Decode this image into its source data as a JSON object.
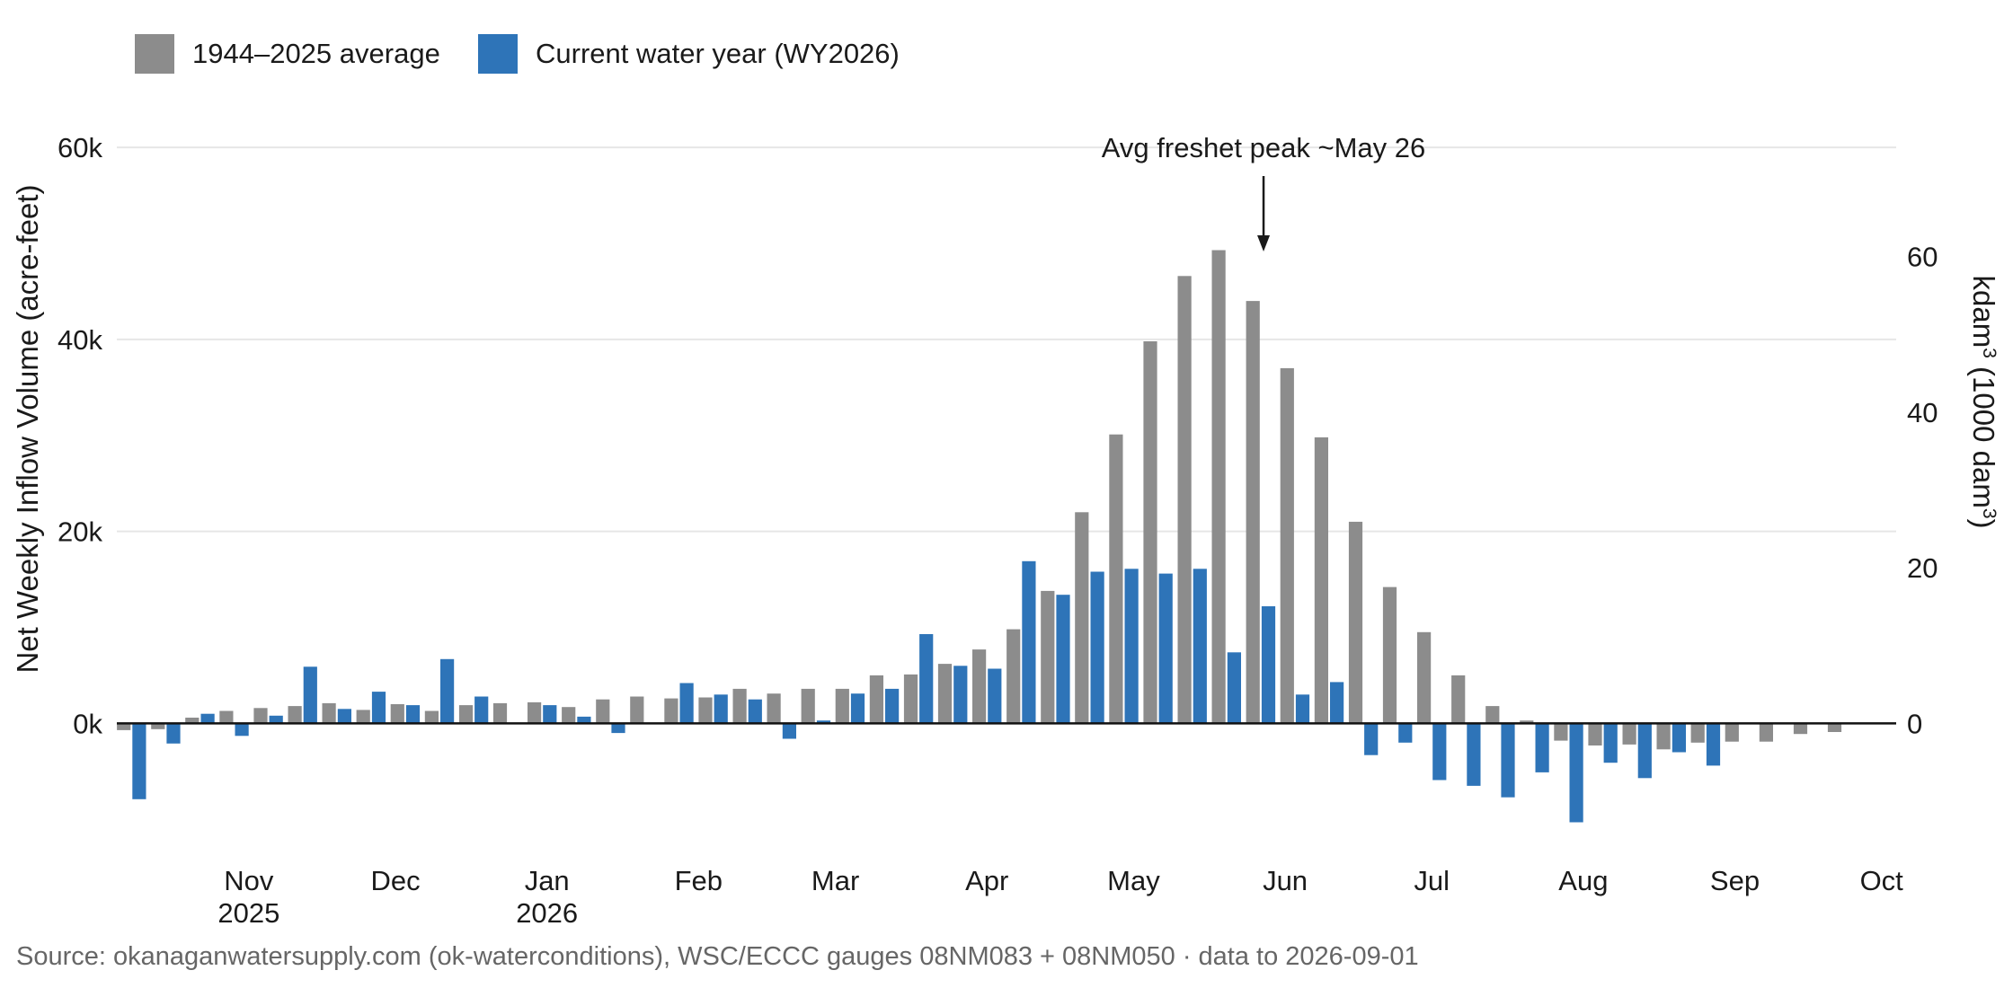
{
  "legend": [
    {
      "label": "1944–2025 average",
      "color": "#8c8c8c"
    },
    {
      "label": "Current water year (WY2026)",
      "color": "#2e74b8"
    }
  ],
  "annotation": {
    "text": "Avg freshet peak ~May 26",
    "x": "2026-05-26"
  },
  "source": "Source: okanaganwatersupply.com (ok-waterconditions), WSC/ECCC gauges 08NM083 + 08NM050 · data to 2026-09-01",
  "chart_data": {
    "type": "bar",
    "title": "",
    "ylabel": "Net Weekly Inflow Volume (acre-feet)",
    "ylabel2": "kdam³ (1000 dam³)",
    "ylim": [
      -14000,
      66000
    ],
    "yticks": [
      0,
      20000,
      40000,
      60000
    ],
    "ytick_labels": [
      "0k",
      "20k",
      "40k",
      "60k"
    ],
    "y2_ticks": [
      0,
      20,
      40,
      60
    ],
    "y2_ticks_labels": [
      "0",
      "20",
      "40",
      "60"
    ],
    "grid": true,
    "legend_position": "top-left",
    "xlim": [
      "2025-10-05",
      "2026-10-04"
    ],
    "x_ticks": [
      "2025-11-01",
      "2025-12-01",
      "2026-01-01",
      "2026-02-01",
      "2026-03-01",
      "2026-04-01",
      "2026-05-01",
      "2026-06-01",
      "2026-07-01",
      "2026-08-01",
      "2026-09-01",
      "2026-10-01"
    ],
    "x_tick_labels": [
      "Nov",
      "Dec",
      "Jan",
      "Feb",
      "Mar",
      "Apr",
      "May",
      "Jun",
      "Jul",
      "Aug",
      "Sep",
      "Oct"
    ],
    "x_tick_sublabels": [
      "2025",
      "",
      "2026",
      "",
      "",
      "",
      "",
      "",
      "",
      "",
      "",
      ""
    ],
    "x": [
      "2025-10-08",
      "2025-10-15",
      "2025-10-22",
      "2025-10-29",
      "2025-11-05",
      "2025-11-12",
      "2025-11-19",
      "2025-11-26",
      "2025-12-03",
      "2025-12-10",
      "2025-12-17",
      "2025-12-24",
      "2025-12-31",
      "2026-01-07",
      "2026-01-14",
      "2026-01-21",
      "2026-01-28",
      "2026-02-04",
      "2026-02-11",
      "2026-02-18",
      "2026-02-25",
      "2026-03-04",
      "2026-03-11",
      "2026-03-18",
      "2026-03-25",
      "2026-04-01",
      "2026-04-08",
      "2026-04-15",
      "2026-04-22",
      "2026-04-29",
      "2026-05-06",
      "2026-05-13",
      "2026-05-20",
      "2026-05-27",
      "2026-06-03",
      "2026-06-10",
      "2026-06-17",
      "2026-06-24",
      "2026-07-01",
      "2026-07-08",
      "2026-07-15",
      "2026-07-22",
      "2026-07-29",
      "2026-08-05",
      "2026-08-12",
      "2026-08-19",
      "2026-08-26",
      "2026-09-02",
      "2026-09-09",
      "2026-09-16",
      "2026-09-23",
      "2026-09-30"
    ],
    "series": [
      {
        "name": "1944–2025 average",
        "color": "#8c8c8c",
        "values": [
          -700,
          -600,
          600,
          1300,
          1600,
          1800,
          2100,
          1400,
          2000,
          1300,
          1900,
          2100,
          2200,
          1700,
          2500,
          2800,
          2600,
          2700,
          3600,
          3100,
          3600,
          3600,
          5000,
          5100,
          6200,
          7700,
          9800,
          13800,
          22000,
          30100,
          39800,
          46600,
          49300,
          44000,
          37000,
          29800,
          21000,
          14200,
          9500,
          5000,
          1800,
          300,
          -1800,
          -2300,
          -2200,
          -2700,
          -2000,
          -1900,
          -1900,
          -1100,
          -900,
          null
        ]
      },
      {
        "name": "Current water year (WY2026)",
        "color": "#2e74b8",
        "values": [
          -7900,
          -2100,
          1000,
          -1300,
          800,
          5900,
          1500,
          3300,
          1900,
          6700,
          2800,
          null,
          1900,
          700,
          -1000,
          null,
          4200,
          3000,
          2500,
          -1600,
          300,
          3100,
          3600,
          9300,
          6000,
          5700,
          16900,
          13400,
          15800,
          16100,
          15600,
          16100,
          7400,
          12200,
          3000,
          4300,
          -3300,
          -2000,
          -5900,
          -6500,
          -7700,
          -5100,
          -10300,
          -4100,
          -5700,
          -3000,
          -4400,
          null,
          null,
          null,
          null,
          null
        ]
      }
    ]
  }
}
